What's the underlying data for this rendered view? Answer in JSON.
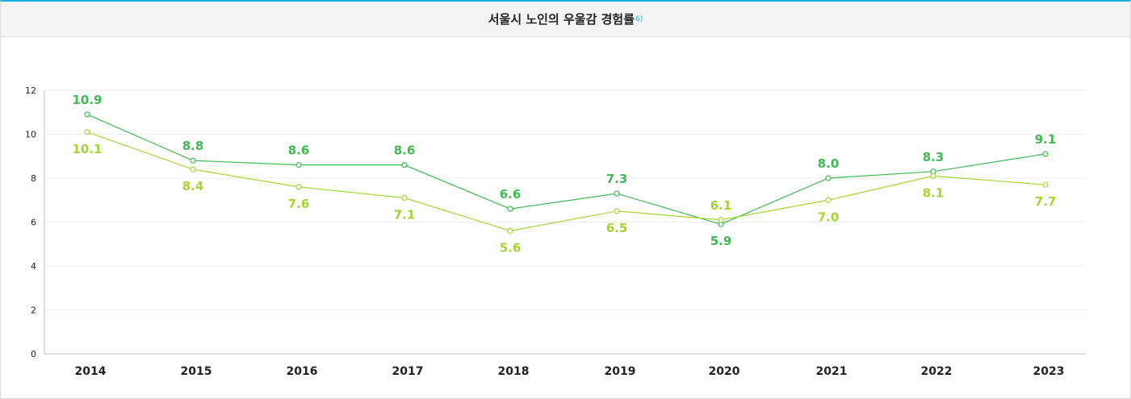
{
  "header": {
    "title": "서울시 노인의 우울감 경험률",
    "footnote": "6)"
  },
  "colors": {
    "series_a": "#3dbb52",
    "series_b": "#a3d633",
    "accent": "#1aaee5"
  },
  "chart_data": {
    "type": "line",
    "title": "서울시 노인의 우울감 경험률",
    "x": [
      "2014",
      "2015",
      "2016",
      "2017",
      "2018",
      "2019",
      "2020",
      "2021",
      "2022",
      "2023"
    ],
    "ylim": [
      0,
      12
    ],
    "yticks": [
      "0",
      "2",
      "4",
      "6",
      "8",
      "10",
      "12"
    ],
    "grid": true,
    "series": [
      {
        "values": [
          10.9,
          8.8,
          8.6,
          8.6,
          6.6,
          7.3,
          5.9,
          8.0,
          8.3,
          9.1
        ],
        "labels": [
          "10.9",
          "8.8",
          "8.6",
          "8.6",
          "6.6",
          "7.3",
          "5.9",
          "8.0",
          "8.3",
          "9.1"
        ],
        "color": "#3dbb52"
      },
      {
        "values": [
          10.1,
          8.4,
          7.6,
          7.1,
          5.6,
          6.5,
          6.1,
          7.0,
          8.1,
          7.7
        ],
        "labels": [
          "10.1",
          "8.4",
          "7.6",
          "7.1",
          "5.6",
          "6.5",
          "6.1",
          "7.0",
          "8.1",
          "7.7"
        ],
        "color": "#a3d633"
      }
    ]
  }
}
